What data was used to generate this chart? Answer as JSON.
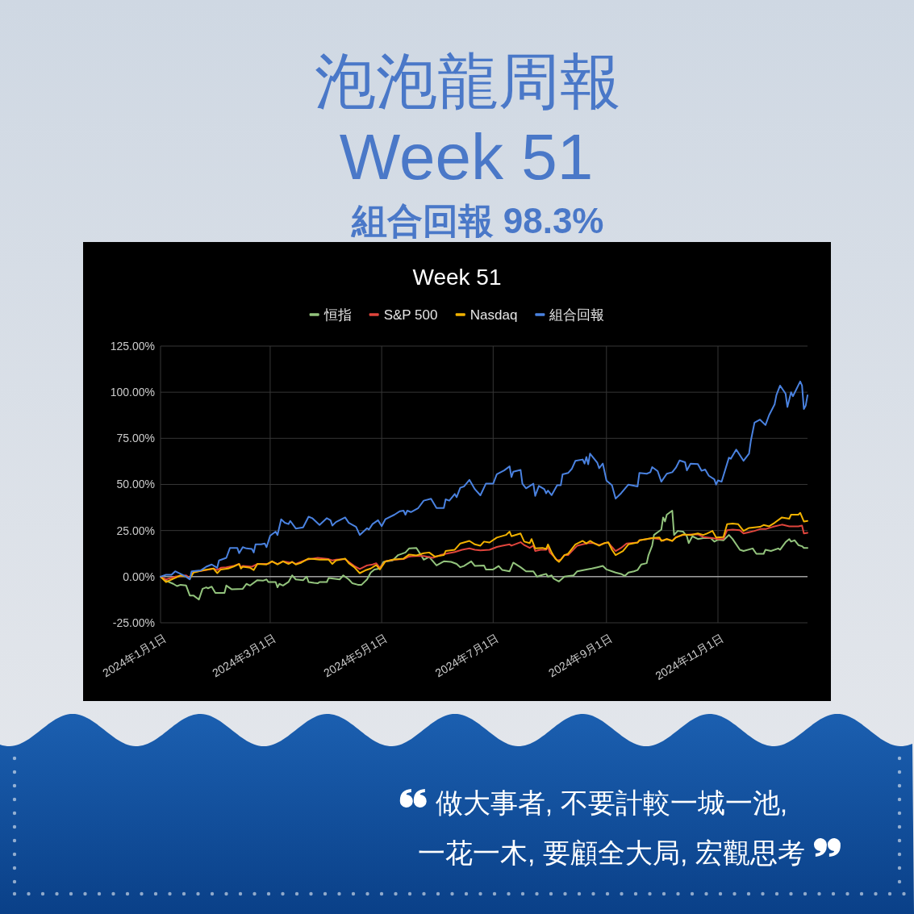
{
  "chart_data": [
    {
      "type": "other",
      "title": "泡泡龍周報",
      "subtitle": "Week 51",
      "annotations": [
        "組合回報 98.3%",
        "做大事者, 不要計較一城一池,",
        "一花一木, 要顧全大局, 宏觀思考"
      ]
    },
    {
      "type": "line",
      "title": "Week 51",
      "legend": "top",
      "grid": true,
      "xlim": [
        "2024-01-01",
        "2024-12-20"
      ],
      "xticks": [
        {
          "value": "2024-01-01",
          "label": "2024年1月1日"
        },
        {
          "value": "2024-03-01",
          "label": "2024年3月1日"
        },
        {
          "value": "2024-05-01",
          "label": "2024年5月1日"
        },
        {
          "value": "2024-07-01",
          "label": "2024年7月1日"
        },
        {
          "value": "2024-09-01",
          "label": "2024年9月1日"
        },
        {
          "value": "2024-11-01",
          "label": "2024年11月1日"
        }
      ],
      "ylim": [
        -25,
        125
      ],
      "yticks": [
        {
          "value": -25,
          "label": "-25.00%"
        },
        {
          "value": 0,
          "label": "0.00%"
        },
        {
          "value": 25,
          "label": "25.00%"
        },
        {
          "value": 50,
          "label": "50.00%"
        },
        {
          "value": 75,
          "label": "75.00%"
        },
        {
          "value": 100,
          "label": "100.00%"
        },
        {
          "value": 125,
          "label": "125.00%"
        }
      ],
      "ref_lines": [
        {
          "axis": "y",
          "value": 0,
          "color": "#9e9e9e"
        }
      ],
      "series": [
        {
          "name": "恒指",
          "color": "#93c47d",
          "x": [
            "2024-01-01",
            "2024-01-04",
            "2024-01-08",
            "2024-01-10",
            "2024-01-12",
            "2024-01-15",
            "2024-01-17",
            "2024-01-19",
            "2024-01-22",
            "2024-01-24",
            "2024-01-26",
            "2024-01-27",
            "2024-01-29",
            "2024-01-31",
            "2024-02-05",
            "2024-02-06",
            "2024-02-09",
            "2024-02-15",
            "2024-02-17",
            "2024-02-19",
            "2024-02-23",
            "2024-02-26",
            "2024-02-28",
            "2024-02-29",
            "2024-03-04",
            "2024-03-05",
            "2024-03-06",
            "2024-03-08",
            "2024-03-11",
            "2024-03-13",
            "2024-03-15",
            "2024-03-19",
            "2024-03-21",
            "2024-03-22",
            "2024-03-25",
            "2024-03-27",
            "2024-03-28",
            "2024-04-01",
            "2024-04-02",
            "2024-04-08",
            "2024-04-10",
            "2024-04-13",
            "2024-04-15",
            "2024-04-18",
            "2024-04-20",
            "2024-04-23",
            "2024-04-25",
            "2024-04-27",
            "2024-04-30",
            "2024-05-02",
            "2024-05-07",
            "2024-05-10",
            "2024-05-14",
            "2024-05-16",
            "2024-05-20",
            "2024-05-23",
            "2024-05-24",
            "2024-05-27",
            "2024-05-31",
            "2024-06-04",
            "2024-06-08",
            "2024-06-11",
            "2024-06-13",
            "2024-06-15",
            "2024-06-19",
            "2024-06-21",
            "2024-06-26",
            "2024-06-27",
            "2024-07-01",
            "2024-07-04",
            "2024-07-06",
            "2024-07-10",
            "2024-07-12",
            "2024-07-16",
            "2024-07-19",
            "2024-07-23",
            "2024-07-25",
            "2024-07-27",
            "2024-07-30",
            "2024-07-31",
            "2024-08-02",
            "2024-08-03",
            "2024-08-06",
            "2024-08-09",
            "2024-08-14",
            "2024-08-16",
            "2024-08-21",
            "2024-08-24",
            "2024-08-27",
            "2024-08-30",
            "2024-09-01",
            "2024-09-06",
            "2024-09-09",
            "2024-09-11",
            "2024-09-13",
            "2024-09-16",
            "2024-09-18",
            "2024-09-20",
            "2024-09-23",
            "2024-09-24",
            "2024-09-26",
            "2024-09-27",
            "2024-09-29",
            "2024-10-01",
            "2024-10-02",
            "2024-10-03",
            "2024-10-04",
            "2024-10-07",
            "2024-10-08",
            "2024-10-10",
            "2024-10-13",
            "2024-10-15",
            "2024-10-16",
            "2024-10-18",
            "2024-10-21",
            "2024-10-24",
            "2024-10-28",
            "2024-10-30",
            "2024-11-01",
            "2024-11-04",
            "2024-11-07",
            "2024-11-09",
            "2024-11-13",
            "2024-11-15",
            "2024-11-20",
            "2024-11-22",
            "2024-11-26",
            "2024-11-27",
            "2024-11-30",
            "2024-12-04",
            "2024-12-05",
            "2024-12-08",
            "2024-12-10",
            "2024-12-11",
            "2024-12-13",
            "2024-12-15",
            "2024-12-17",
            "2024-12-18",
            "2024-12-20"
          ],
          "values": [
            0,
            -2.2,
            -3.9,
            -5.1,
            -4.4,
            -4.8,
            -10.2,
            -10.2,
            -12.4,
            -6.6,
            -5.8,
            -6.3,
            -5.4,
            -8.8,
            -8.8,
            -4.8,
            -6.9,
            -6.6,
            -3.9,
            -4.8,
            -1.9,
            -2.2,
            -1.5,
            -2.9,
            -2.9,
            -5.8,
            -3.9,
            -4.8,
            -2.9,
            0.7,
            -1.5,
            -1.9,
            0,
            -2.9,
            -3.4,
            -3.6,
            -2.9,
            -2.9,
            -0.7,
            -1.5,
            0.7,
            -1.5,
            -3.6,
            -4.4,
            -4.4,
            -1.5,
            2.2,
            3.9,
            4.4,
            8,
            8.8,
            11.7,
            13.1,
            15.3,
            15.6,
            10.9,
            9.2,
            10.7,
            6.1,
            8.3,
            8,
            6.9,
            5.1,
            5.8,
            8.3,
            5.8,
            6.1,
            3.9,
            3.9,
            5.8,
            3.6,
            2.9,
            7.6,
            5.1,
            2.9,
            2.9,
            0,
            0.7,
            1.5,
            0,
            0.7,
            -1,
            -2.6,
            0,
            0.7,
            2.9,
            3.9,
            4.4,
            5.1,
            5.8,
            3.9,
            2.2,
            1.5,
            0.4,
            2.2,
            2.9,
            3.6,
            6.6,
            7.3,
            11.7,
            16.8,
            22.6,
            24.1,
            25.5,
            32.1,
            29.9,
            33.6,
            35.8,
            22.6,
            24.8,
            24.4,
            21.9,
            18.2,
            21.9,
            20.4,
            20.9,
            20.9,
            19,
            20,
            19.7,
            22.6,
            20.4,
            14.6,
            13.9,
            15.3,
            12.4,
            12.4,
            14.6,
            13.9,
            15.3,
            14.6,
            18.7,
            20.4,
            19,
            19.7,
            17.1,
            16.5,
            15.6,
            15.6
          ]
        },
        {
          "name": "S&P 500",
          "color": "#e0453c",
          "x": [
            "2024-01-01",
            "2024-01-04",
            "2024-01-09",
            "2024-01-15",
            "2024-01-17",
            "2024-01-19",
            "2024-01-25",
            "2024-01-30",
            "2024-02-01",
            "2024-02-03",
            "2024-02-06",
            "2024-02-10",
            "2024-02-13",
            "2024-02-14",
            "2024-02-15",
            "2024-02-20",
            "2024-02-23",
            "2024-02-29",
            "2024-03-02",
            "2024-03-05",
            "2024-03-08",
            "2024-03-12",
            "2024-03-13",
            "2024-03-15",
            "2024-03-21",
            "2024-03-27",
            "2024-04-02",
            "2024-04-04",
            "2024-04-06",
            "2024-04-11",
            "2024-04-13",
            "2024-04-16",
            "2024-04-19",
            "2024-04-23",
            "2024-04-26",
            "2024-04-28",
            "2024-04-30",
            "2024-05-03",
            "2024-05-08",
            "2024-05-13",
            "2024-05-16",
            "2024-05-20",
            "2024-05-24",
            "2024-05-29",
            "2024-06-02",
            "2024-06-05",
            "2024-06-10",
            "2024-06-14",
            "2024-06-18",
            "2024-06-21",
            "2024-06-24",
            "2024-06-29",
            "2024-07-03",
            "2024-07-06",
            "2024-07-10",
            "2024-07-11",
            "2024-07-16",
            "2024-07-18",
            "2024-07-21",
            "2024-07-23",
            "2024-07-24",
            "2024-07-27",
            "2024-07-30",
            "2024-07-31",
            "2024-08-01",
            "2024-08-04",
            "2024-08-05",
            "2024-08-07",
            "2024-08-09",
            "2024-08-11",
            "2024-08-16",
            "2024-08-19",
            "2024-08-22",
            "2024-08-25",
            "2024-08-28",
            "2024-08-31",
            "2024-09-02",
            "2024-09-04",
            "2024-09-06",
            "2024-09-09",
            "2024-09-12",
            "2024-09-18",
            "2024-09-19",
            "2024-09-23",
            "2024-09-26",
            "2024-09-30",
            "2024-10-02",
            "2024-10-04",
            "2024-10-07",
            "2024-10-09",
            "2024-10-13",
            "2024-10-17",
            "2024-10-21",
            "2024-10-24",
            "2024-10-29",
            "2024-11-01",
            "2024-11-04",
            "2024-11-06",
            "2024-11-09",
            "2024-11-13",
            "2024-11-15",
            "2024-11-18",
            "2024-11-21",
            "2024-11-24",
            "2024-11-27",
            "2024-12-01",
            "2024-12-06",
            "2024-12-10",
            "2024-12-15",
            "2024-12-17",
            "2024-12-18",
            "2024-12-20"
          ],
          "values": [
            0,
            -1.5,
            0,
            0.7,
            -0.7,
            2.5,
            3.4,
            4.4,
            3.6,
            4.8,
            5.1,
            5.8,
            6.9,
            5.1,
            5.8,
            5.4,
            6.9,
            7,
            8.3,
            6.9,
            8.3,
            7.6,
            8,
            6.9,
            9.2,
            10.2,
            9.5,
            8.8,
            9.2,
            9.5,
            8,
            5.8,
            4.1,
            6.1,
            6.6,
            7.3,
            4.8,
            8.3,
            9.2,
            9.5,
            10.9,
            11.2,
            11.2,
            10.2,
            11.7,
            12.4,
            13.4,
            14.6,
            15.3,
            14.6,
            14.3,
            14.6,
            16.1,
            16.8,
            17.5,
            16.8,
            18.7,
            17.1,
            15.6,
            16.8,
            13.9,
            14.6,
            14.6,
            16.1,
            13.1,
            10.2,
            8.8,
            9.2,
            11.7,
            11.7,
            16.8,
            17.5,
            18.2,
            18.2,
            17.1,
            18.2,
            18.5,
            16.1,
            13.9,
            15.6,
            18,
            18.5,
            19.7,
            20.4,
            20.9,
            20.4,
            19.4,
            20.4,
            19.4,
            21.5,
            22.6,
            22.9,
            22.9,
            21.5,
            20.9,
            20.4,
            20.4,
            25.2,
            25.5,
            25.2,
            23.4,
            24.1,
            24.8,
            25.8,
            25.8,
            27,
            28.2,
            27.3,
            27.3,
            27.7,
            23.4,
            23.8
          ]
        },
        {
          "name": "Nasdaq",
          "color": "#f2b200",
          "x": [
            "2024-01-01",
            "2024-01-04",
            "2024-01-09",
            "2024-01-12",
            "2024-01-15",
            "2024-01-17",
            "2024-01-19",
            "2024-01-25",
            "2024-01-30",
            "2024-02-01",
            "2024-02-03",
            "2024-02-07",
            "2024-02-10",
            "2024-02-13",
            "2024-02-14",
            "2024-02-15",
            "2024-02-19",
            "2024-02-21",
            "2024-02-23",
            "2024-02-28",
            "2024-03-02",
            "2024-03-05",
            "2024-03-08",
            "2024-03-11",
            "2024-03-13",
            "2024-03-15",
            "2024-03-18",
            "2024-03-22",
            "2024-03-25",
            "2024-03-28",
            "2024-04-02",
            "2024-04-04",
            "2024-04-06",
            "2024-04-11",
            "2024-04-13",
            "2024-04-16",
            "2024-04-19",
            "2024-04-22",
            "2024-04-25",
            "2024-04-28",
            "2024-04-30",
            "2024-05-03",
            "2024-05-07",
            "2024-05-13",
            "2024-05-16",
            "2024-05-20",
            "2024-05-24",
            "2024-05-27",
            "2024-05-30",
            "2024-06-04",
            "2024-06-05",
            "2024-06-10",
            "2024-06-13",
            "2024-06-18",
            "2024-06-21",
            "2024-06-24",
            "2024-06-26",
            "2024-06-29",
            "2024-07-03",
            "2024-07-08",
            "2024-07-10",
            "2024-07-11",
            "2024-07-16",
            "2024-07-18",
            "2024-07-21",
            "2024-07-22",
            "2024-07-24",
            "2024-07-28",
            "2024-07-30",
            "2024-07-31",
            "2024-08-02",
            "2024-08-04",
            "2024-08-06",
            "2024-08-07",
            "2024-08-09",
            "2024-08-11",
            "2024-08-15",
            "2024-08-19",
            "2024-08-21",
            "2024-08-23",
            "2024-08-25",
            "2024-08-28",
            "2024-08-31",
            "2024-09-02",
            "2024-09-04",
            "2024-09-06",
            "2024-09-10",
            "2024-09-13",
            "2024-09-18",
            "2024-09-19",
            "2024-09-23",
            "2024-09-26",
            "2024-09-30",
            "2024-10-01",
            "2024-10-04",
            "2024-10-07",
            "2024-10-09",
            "2024-10-13",
            "2024-10-17",
            "2024-10-21",
            "2024-10-24",
            "2024-10-26",
            "2024-10-29",
            "2024-10-31",
            "2024-11-04",
            "2024-11-06",
            "2024-11-09",
            "2024-11-12",
            "2024-11-15",
            "2024-11-18",
            "2024-11-24",
            "2024-11-26",
            "2024-11-29",
            "2024-12-02",
            "2024-12-06",
            "2024-12-10",
            "2024-12-11",
            "2024-12-15",
            "2024-12-16",
            "2024-12-18",
            "2024-12-20"
          ],
          "values": [
            0,
            -2.9,
            -0.7,
            0.7,
            0,
            -1.2,
            2.2,
            3.6,
            4.4,
            1.9,
            3.9,
            4.4,
            5.5,
            6.9,
            4.4,
            5.4,
            4.8,
            3.6,
            6.9,
            6.6,
            8.3,
            6.6,
            8.3,
            6.9,
            8,
            6.6,
            7.6,
            9.8,
            9.5,
            9.2,
            9.2,
            6.9,
            8.8,
            9.8,
            7.3,
            5.1,
            1.9,
            3.4,
            4.4,
            6.3,
            3.9,
            8.3,
            9.2,
            9.8,
            12,
            11.5,
            12.7,
            13.1,
            10.9,
            11.7,
            13.9,
            14.6,
            18,
            19.4,
            17.5,
            16.8,
            19,
            18.5,
            21.2,
            22.6,
            24.4,
            21.9,
            23.4,
            19,
            18.2,
            20.4,
            15.3,
            15.6,
            15,
            17.5,
            13.1,
            9.8,
            8,
            9.2,
            11.7,
            12.4,
            17.5,
            19.4,
            18,
            19.4,
            18.2,
            16.8,
            18.2,
            18.6,
            14.6,
            11.7,
            13.9,
            17.5,
            18.5,
            19.7,
            20.4,
            20.9,
            21.2,
            19.4,
            20.4,
            19.4,
            21.2,
            22.9,
            22.6,
            23.4,
            22.6,
            23.4,
            24.8,
            21.2,
            21.5,
            28.5,
            28.8,
            28.5,
            24.8,
            26.4,
            27,
            28,
            27.3,
            29.2,
            32.1,
            31.4,
            33.6,
            33.6,
            34.6,
            29.9,
            30.2
          ]
        },
        {
          "name": "組合回報",
          "color": "#4a82e0",
          "x": [
            "2024-01-01",
            "2024-01-04",
            "2024-01-07",
            "2024-01-09",
            "2024-01-12",
            "2024-01-15",
            "2024-01-17",
            "2024-01-18",
            "2024-01-23",
            "2024-01-26",
            "2024-01-29",
            "2024-02-01",
            "2024-02-02",
            "2024-02-06",
            "2024-02-08",
            "2024-02-12",
            "2024-02-13",
            "2024-02-15",
            "2024-02-17",
            "2024-02-20",
            "2024-02-21",
            "2024-02-22",
            "2024-02-25",
            "2024-02-27",
            "2024-02-28",
            "2024-03-01",
            "2024-03-04",
            "2024-03-05",
            "2024-03-07",
            "2024-03-09",
            "2024-03-11",
            "2024-03-12",
            "2024-03-15",
            "2024-03-19",
            "2024-03-22",
            "2024-03-24",
            "2024-03-28",
            "2024-04-01",
            "2024-04-03",
            "2024-04-04",
            "2024-04-06",
            "2024-04-11",
            "2024-04-13",
            "2024-04-17",
            "2024-04-19",
            "2024-04-23",
            "2024-04-24",
            "2024-04-26",
            "2024-04-29",
            "2024-05-01",
            "2024-05-03",
            "2024-05-08",
            "2024-05-11",
            "2024-05-13",
            "2024-05-14",
            "2024-05-15",
            "2024-05-17",
            "2024-05-21",
            "2024-05-24",
            "2024-05-28",
            "2024-05-31",
            "2024-06-04",
            "2024-06-05",
            "2024-06-07",
            "2024-06-10",
            "2024-06-11",
            "2024-06-13",
            "2024-06-15",
            "2024-06-18",
            "2024-06-21",
            "2024-06-24",
            "2024-06-27",
            "2024-07-01",
            "2024-07-03",
            "2024-07-07",
            "2024-07-10",
            "2024-07-11",
            "2024-07-12",
            "2024-07-16",
            "2024-07-17",
            "2024-07-19",
            "2024-07-23",
            "2024-07-24",
            "2024-07-26",
            "2024-07-29",
            "2024-07-30",
            "2024-07-31",
            "2024-08-02",
            "2024-08-05",
            "2024-08-07",
            "2024-08-08",
            "2024-08-11",
            "2024-08-13",
            "2024-08-15",
            "2024-08-19",
            "2024-08-20",
            "2024-08-21",
            "2024-08-22",
            "2024-08-23",
            "2024-08-27",
            "2024-08-28",
            "2024-08-30",
            "2024-09-01",
            "2024-09-04",
            "2024-09-06",
            "2024-09-09",
            "2024-09-13",
            "2024-09-18",
            "2024-09-19",
            "2024-09-23",
            "2024-09-25",
            "2024-09-26",
            "2024-09-29",
            "2024-10-01",
            "2024-10-04",
            "2024-10-07",
            "2024-10-09",
            "2024-10-11",
            "2024-10-14",
            "2024-10-15",
            "2024-10-17",
            "2024-10-21",
            "2024-10-23",
            "2024-10-25",
            "2024-10-27",
            "2024-10-30",
            "2024-10-31",
            "2024-11-01",
            "2024-11-03",
            "2024-11-07",
            "2024-11-08",
            "2024-11-11",
            "2024-11-15",
            "2024-11-18",
            "2024-11-19",
            "2024-11-21",
            "2024-11-24",
            "2024-11-27",
            "2024-11-29",
            "2024-12-02",
            "2024-12-03",
            "2024-12-05",
            "2024-12-08",
            "2024-12-09",
            "2024-12-11",
            "2024-12-12",
            "2024-12-16",
            "2024-12-17",
            "2024-12-18",
            "2024-12-19",
            "2024-12-20"
          ],
          "values": [
            0,
            1,
            1,
            2.9,
            1.5,
            0,
            -1.5,
            2.9,
            3.4,
            5.4,
            6.6,
            4.8,
            8.8,
            10.2,
            15.6,
            15.6,
            12.7,
            16,
            15.3,
            15,
            13.1,
            17.5,
            17.5,
            18,
            16,
            22.2,
            24.4,
            22.6,
            31.1,
            29.2,
            28.5,
            30.2,
            26.1,
            26.7,
            32.5,
            31.7,
            28,
            31.7,
            30.6,
            27.7,
            29.6,
            32.1,
            29.2,
            27,
            22.6,
            26.3,
            25.5,
            28.5,
            30.6,
            27.4,
            31.1,
            33.6,
            35.5,
            35.8,
            33.6,
            35.8,
            35,
            37.2,
            41.2,
            42.2,
            37.2,
            37.2,
            41.9,
            41.2,
            44.8,
            43.1,
            48.2,
            48.9,
            52.5,
            47.4,
            44.1,
            50.4,
            50.4,
            55.5,
            57.6,
            59.8,
            54,
            56.9,
            57.9,
            50.4,
            47.9,
            50.4,
            43.8,
            49.2,
            47.4,
            45.2,
            46.7,
            44.2,
            49.6,
            49.6,
            55.5,
            56.2,
            58.4,
            62.8,
            63.5,
            61.3,
            64.9,
            60.9,
            66.7,
            61.7,
            58.8,
            61.3,
            52.1,
            49.6,
            42.3,
            45.2,
            49.9,
            48.9,
            56.2,
            55.8,
            56.6,
            59.4,
            57.2,
            51.5,
            55.8,
            56.6,
            59.1,
            63,
            62,
            57.6,
            61.3,
            61,
            57.4,
            58.1,
            54.7,
            52.8,
            49.9,
            52.2,
            51.5,
            64.5,
            63.9,
            68.9,
            62.8,
            66.7,
            73.7,
            83.5,
            85.1,
            82.2,
            87.6,
            93.4,
            98.5,
            103.6,
            99.2,
            92,
            100,
            97.8,
            105.8,
            103.6,
            90.9,
            92.7,
            98.3
          ]
        }
      ]
    }
  ]
}
